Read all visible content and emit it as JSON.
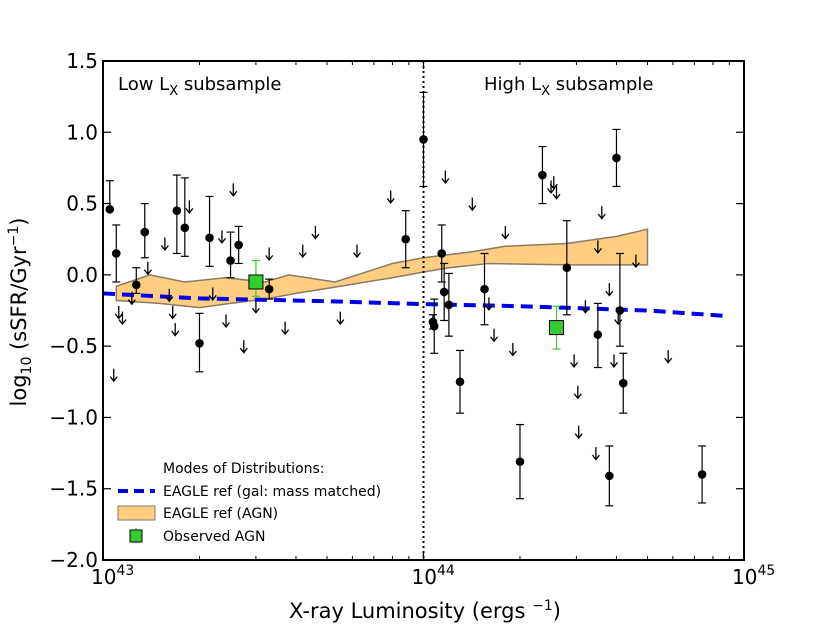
{
  "chart_data": {
    "type": "scatter",
    "xscale": "log",
    "xlim": [
      1e+43,
      1e+45
    ],
    "ylim": [
      -2.0,
      1.5
    ],
    "xlabel": {
      "main": "X-ray Luminosity (ergs ",
      "sup": "−1",
      "end": ")"
    },
    "ylabel": {
      "pre": "log",
      "sub": "10",
      "mid": " (sSFR/Gyr",
      "sup": "−1",
      "end": ")"
    },
    "yticks": [
      "1.5",
      "1.0",
      "0.5",
      "0.0",
      "−0.5",
      "−1.0",
      "−1.5",
      "−2.0"
    ],
    "ytick_values": [
      1.5,
      1.0,
      0.5,
      0.0,
      -0.5,
      -1.0,
      -1.5,
      -2.0
    ],
    "xticks": [
      {
        "value": 1e+43,
        "base": "10",
        "exp": "43"
      },
      {
        "value": 1e+44,
        "base": "10",
        "exp": "44"
      },
      {
        "value": 1e+45,
        "base": "10",
        "exp": "45"
      }
    ],
    "divider_x": 1e+44,
    "region_labels": [
      {
        "pre": "Low L",
        "sub": "X",
        "post": " subsample"
      },
      {
        "pre": "High L",
        "sub": "X",
        "post": " subsample"
      }
    ],
    "legend": {
      "title": "Modes of Distributions:",
      "entries": [
        "EAGLE ref (gal: mass matched)",
        "EAGLE ref (AGN)",
        "Observed AGN"
      ]
    },
    "colors": {
      "eagle_gal": "#0000ee",
      "eagle_agn_fill": "#ffce80",
      "eagle_agn_edge": "#8a7a66",
      "observed": "#33cc33",
      "points": "#000000"
    },
    "eagle_gal_line": [
      [
        1e+43,
        -0.13
      ],
      [
        1.2e+43,
        -0.14
      ],
      [
        2e+43,
        -0.165
      ],
      [
        5e+43,
        -0.185
      ],
      [
        1e+44,
        -0.205
      ],
      [
        2e+44,
        -0.22
      ],
      [
        5e+44,
        -0.25
      ],
      [
        9e+44,
        -0.29
      ]
    ],
    "eagle_agn_band": {
      "upper": [
        [
          1.1e+43,
          -0.08
        ],
        [
          1.4e+43,
          0.0
        ],
        [
          1.8e+43,
          -0.05
        ],
        [
          2.4e+43,
          -0.02
        ],
        [
          3.2e+43,
          -0.05
        ],
        [
          3.8e+43,
          0.0
        ],
        [
          5.3e+43,
          -0.05
        ],
        [
          8e+43,
          0.08
        ],
        [
          1e+44,
          0.12
        ],
        [
          1.4e+44,
          0.16
        ],
        [
          1.8e+44,
          0.2
        ],
        [
          2.8e+44,
          0.22
        ],
        [
          4e+44,
          0.27
        ],
        [
          5e+44,
          0.32
        ]
      ],
      "lower": [
        [
          5e+44,
          0.07
        ],
        [
          4e+44,
          0.07
        ],
        [
          2.8e+44,
          0.07
        ],
        [
          1.6e+44,
          0.08
        ],
        [
          1.2e+44,
          0.05
        ],
        [
          1e+44,
          0.02
        ],
        [
          8e+43,
          -0.02
        ],
        [
          5.5e+43,
          -0.08
        ],
        [
          4e+43,
          -0.13
        ],
        [
          3.2e+43,
          -0.17
        ],
        [
          2.5e+43,
          -0.2
        ],
        [
          2e+43,
          -0.23
        ],
        [
          1.5e+43,
          -0.2
        ],
        [
          1.1e+43,
          -0.18
        ]
      ]
    },
    "detections": [
      {
        "x": 1.05e+43,
        "y": 0.46,
        "lo": 0.46,
        "hi": 0.66
      },
      {
        "x": 1.1e+43,
        "y": 0.15,
        "lo": -0.05,
        "hi": 0.35
      },
      {
        "x": 1.27e+43,
        "y": -0.07,
        "lo": -0.13,
        "hi": 0.05
      },
      {
        "x": 1.35e+43,
        "y": 0.3,
        "lo": 0.12,
        "hi": 0.5
      },
      {
        "x": 1.7e+43,
        "y": 0.45,
        "lo": 0.15,
        "hi": 0.7
      },
      {
        "x": 1.8e+43,
        "y": 0.33,
        "lo": 0.13,
        "hi": 0.68
      },
      {
        "x": 2e+43,
        "y": -0.48,
        "lo": -0.68,
        "hi": -0.27
      },
      {
        "x": 2.15e+43,
        "y": 0.26,
        "lo": 0.06,
        "hi": 0.55
      },
      {
        "x": 2.5e+43,
        "y": 0.1,
        "lo": -0.02,
        "hi": 0.3
      },
      {
        "x": 2.65e+43,
        "y": 0.21,
        "lo": 0.08,
        "hi": 0.34
      },
      {
        "x": 3.3e+43,
        "y": -0.1,
        "lo": -0.17,
        "hi": -0.03
      },
      {
        "x": 8.8e+43,
        "y": 0.25,
        "lo": 0.05,
        "hi": 0.45
      },
      {
        "x": 1e+44,
        "y": 0.95,
        "lo": 0.62,
        "hi": 1.28
      },
      {
        "x": 1.07e+44,
        "y": -0.33,
        "lo": -0.38,
        "hi": -0.28
      },
      {
        "x": 1.08e+44,
        "y": -0.36,
        "lo": -0.55,
        "hi": -0.17
      },
      {
        "x": 1.14e+44,
        "y": 0.15,
        "lo": -0.05,
        "hi": 0.35
      },
      {
        "x": 1.16e+44,
        "y": -0.12,
        "lo": -0.32,
        "hi": 0.08
      },
      {
        "x": 1.2e+44,
        "y": -0.21,
        "lo": -0.43,
        "hi": 0.01
      },
      {
        "x": 1.3e+44,
        "y": -0.75,
        "lo": -0.97,
        "hi": -0.53
      },
      {
        "x": 1.55e+44,
        "y": -0.1,
        "lo": -0.35,
        "hi": 0.15
      },
      {
        "x": 2e+44,
        "y": -1.31,
        "lo": -1.57,
        "hi": -1.05
      },
      {
        "x": 2.35e+44,
        "y": 0.7,
        "lo": 0.5,
        "hi": 0.9
      },
      {
        "x": 2.8e+44,
        "y": 0.05,
        "lo": -0.28,
        "hi": 0.38
      },
      {
        "x": 3.5e+44,
        "y": -0.42,
        "lo": -0.65,
        "hi": -0.2
      },
      {
        "x": 3.8e+44,
        "y": -1.41,
        "lo": -1.62,
        "hi": -1.2
      },
      {
        "x": 4e+44,
        "y": 0.82,
        "lo": 0.62,
        "hi": 1.02
      },
      {
        "x": 4.1e+44,
        "y": -0.25,
        "lo": -0.5,
        "hi": 0.15
      },
      {
        "x": 4.2e+44,
        "y": -0.76,
        "lo": -0.97,
        "hi": -0.55
      },
      {
        "x": 7.4e+44,
        "y": -1.4,
        "lo": -1.6,
        "hi": -1.2
      }
    ],
    "upper_limits": [
      {
        "x": 1.08e+43,
        "y": -0.7
      },
      {
        "x": 1.12e+43,
        "y": -0.26
      },
      {
        "x": 1.15e+43,
        "y": -0.3
      },
      {
        "x": 1.23e+43,
        "y": -0.16
      },
      {
        "x": 1.38e+43,
        "y": 0.05
      },
      {
        "x": 1.56e+43,
        "y": 0.22
      },
      {
        "x": 1.61e+43,
        "y": -0.14
      },
      {
        "x": 1.65e+43,
        "y": -0.26
      },
      {
        "x": 1.68e+43,
        "y": -0.38
      },
      {
        "x": 1.86e+43,
        "y": 0.48
      },
      {
        "x": 2.2e+43,
        "y": -0.13
      },
      {
        "x": 2.35e+43,
        "y": 0.27
      },
      {
        "x": 2.42e+43,
        "y": -0.32
      },
      {
        "x": 2.55e+43,
        "y": 0.6
      },
      {
        "x": 2.75e+43,
        "y": -0.5
      },
      {
        "x": 3e+43,
        "y": -0.22
      },
      {
        "x": 3.3e+43,
        "y": 0.15
      },
      {
        "x": 3.7e+43,
        "y": -0.37
      },
      {
        "x": 4.2e+43,
        "y": 0.17
      },
      {
        "x": 4.6e+43,
        "y": 0.3
      },
      {
        "x": 5.5e+43,
        "y": -0.3
      },
      {
        "x": 6.2e+43,
        "y": 0.17
      },
      {
        "x": 7.9e+43,
        "y": 0.55
      },
      {
        "x": 1.17e+44,
        "y": 0.69
      },
      {
        "x": 1.42e+44,
        "y": 0.5
      },
      {
        "x": 1.6e+44,
        "y": -0.2
      },
      {
        "x": 1.66e+44,
        "y": -0.42
      },
      {
        "x": 1.8e+44,
        "y": 0.3
      },
      {
        "x": 1.9e+44,
        "y": -0.52
      },
      {
        "x": 2.5e+44,
        "y": 0.62
      },
      {
        "x": 2.55e+44,
        "y": 0.65
      },
      {
        "x": 2.6e+44,
        "y": 0.58
      },
      {
        "x": 2.95e+44,
        "y": -0.6
      },
      {
        "x": 3.03e+44,
        "y": -0.82
      },
      {
        "x": 3.05e+44,
        "y": -1.1
      },
      {
        "x": 3.2e+44,
        "y": -0.22
      },
      {
        "x": 3.45e+44,
        "y": -1.25
      },
      {
        "x": 3.5e+44,
        "y": 0.2
      },
      {
        "x": 3.6e+44,
        "y": 0.44
      },
      {
        "x": 3.8e+44,
        "y": -0.1
      },
      {
        "x": 3.93e+44,
        "y": -0.6
      },
      {
        "x": 4.05e+44,
        "y": -0.3
      },
      {
        "x": 4.6e+44,
        "y": 0.1
      },
      {
        "x": 5.8e+44,
        "y": -0.57
      }
    ],
    "observed_agn": [
      {
        "x": 3e+43,
        "y": -0.05,
        "lo": -0.15,
        "hi": 0.1
      },
      {
        "x": 2.6e+44,
        "y": -0.37,
        "lo": -0.52,
        "hi": -0.22
      }
    ]
  }
}
